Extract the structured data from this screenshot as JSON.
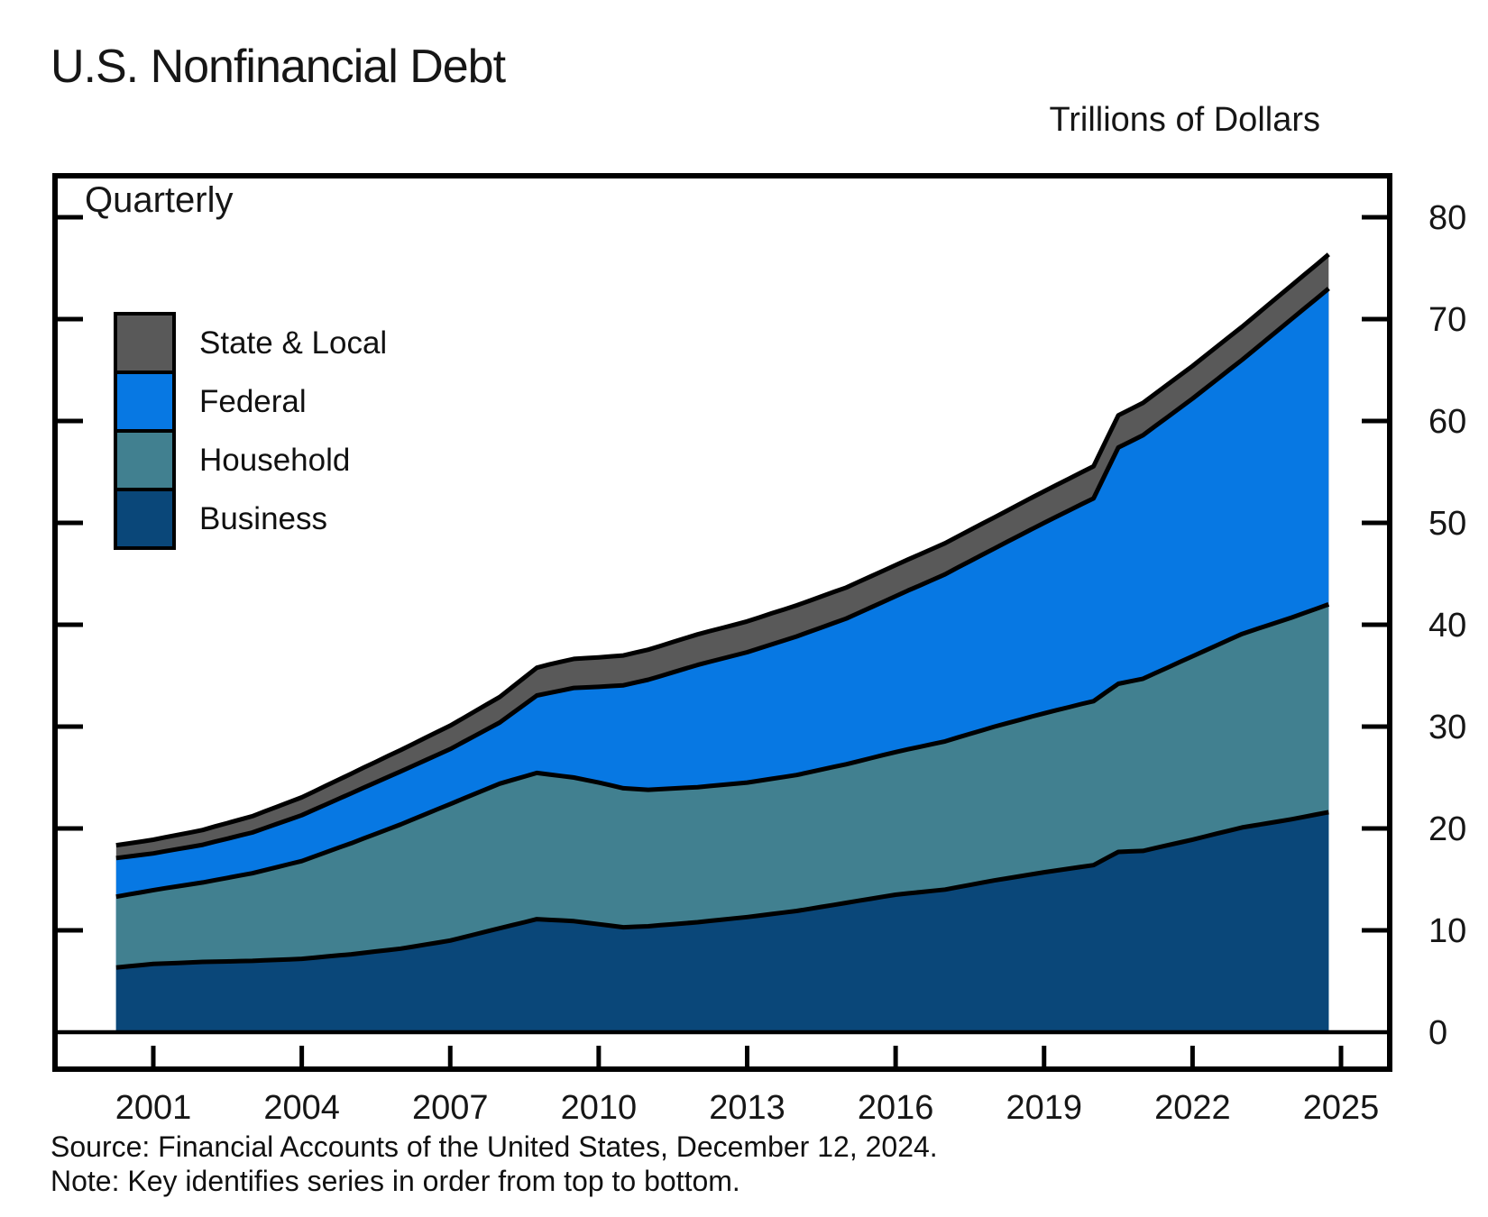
{
  "title": "U.S. Nonfinancial Debt",
  "right_axis_title": "Trillions of Dollars",
  "panel_label": "Quarterly",
  "source_line": "Source: Financial Accounts of the United States, December 12, 2024.",
  "note_line": "Note: Key identifies series in order from top to bottom.",
  "colors": {
    "state_local": "#595959",
    "federal": "#0778e3",
    "household": "#418090",
    "business": "#0a4779",
    "line": "#000000"
  },
  "legend": [
    {
      "label": "State & Local",
      "color": "#595959"
    },
    {
      "label": "Federal",
      "color": "#0778e3"
    },
    {
      "label": "Household",
      "color": "#418090"
    },
    {
      "label": "Business",
      "color": "#0a4779"
    }
  ],
  "chart_data": {
    "type": "area",
    "stacked": true,
    "title": "U.S. Nonfinancial Debt",
    "units": "Trillions of Dollars",
    "frequency": "Quarterly",
    "xlabel": "",
    "ylabel": "Trillions of Dollars",
    "ylim": [
      0,
      80
    ],
    "yticks": [
      0,
      10,
      20,
      30,
      40,
      50,
      60,
      70,
      80
    ],
    "xticks": [
      2001,
      2004,
      2007,
      2010,
      2013,
      2016,
      2019,
      2022,
      2025
    ],
    "xlim": [
      1999,
      2026
    ],
    "grid": false,
    "legend_position": "upper-left",
    "legend_order_top_to_bottom": [
      "State & Local",
      "Federal",
      "Household",
      "Business"
    ],
    "x": [
      2000.25,
      2000.5,
      2000.75,
      2001,
      2001.25,
      2001.5,
      2001.75,
      2002,
      2002.25,
      2002.5,
      2002.75,
      2003,
      2003.25,
      2003.5,
      2003.75,
      2004,
      2004.25,
      2004.5,
      2004.75,
      2005,
      2005.25,
      2005.5,
      2005.75,
      2006,
      2006.25,
      2006.5,
      2006.75,
      2007,
      2007.25,
      2007.5,
      2007.75,
      2008,
      2008.25,
      2008.5,
      2008.75,
      2009,
      2009.25,
      2009.5,
      2009.75,
      2010,
      2010.25,
      2010.5,
      2010.75,
      2011,
      2011.25,
      2011.5,
      2011.75,
      2012,
      2012.25,
      2012.5,
      2012.75,
      2013,
      2013.25,
      2013.5,
      2013.75,
      2014,
      2014.25,
      2014.5,
      2014.75,
      2015,
      2015.25,
      2015.5,
      2015.75,
      2016,
      2016.25,
      2016.5,
      2016.75,
      2017,
      2017.25,
      2017.5,
      2017.75,
      2018,
      2018.25,
      2018.5,
      2018.75,
      2019,
      2019.25,
      2019.5,
      2019.75,
      2020,
      2020.25,
      2020.5,
      2020.75,
      2021,
      2021.25,
      2021.5,
      2021.75,
      2022,
      2022.25,
      2022.5,
      2022.75,
      2023,
      2023.25,
      2023.5,
      2023.75,
      2024,
      2024.25,
      2024.5,
      2024.75
    ],
    "series": [
      {
        "name": "Business",
        "color": "#0a4779",
        "values": [
          6.35,
          6.47,
          6.58,
          6.7,
          6.75,
          6.8,
          6.85,
          6.9,
          6.93,
          6.95,
          6.98,
          7.0,
          7.05,
          7.1,
          7.15,
          7.2,
          7.31,
          7.43,
          7.54,
          7.65,
          7.79,
          7.93,
          8.06,
          8.2,
          8.4,
          8.6,
          8.8,
          9.0,
          9.3,
          9.6,
          9.9,
          10.2,
          10.5,
          10.8,
          11.1,
          11.03,
          10.97,
          10.9,
          10.75,
          10.6,
          10.45,
          10.3,
          10.35,
          10.4,
          10.5,
          10.6,
          10.7,
          10.8,
          10.93,
          11.05,
          11.18,
          11.3,
          11.45,
          11.6,
          11.75,
          11.9,
          12.1,
          12.3,
          12.5,
          12.7,
          12.9,
          13.1,
          13.3,
          13.5,
          13.63,
          13.75,
          13.88,
          14.0,
          14.23,
          14.45,
          14.68,
          14.9,
          15.1,
          15.3,
          15.5,
          15.7,
          15.88,
          16.05,
          16.23,
          16.4,
          17.05,
          17.7,
          17.75,
          17.8,
          18.08,
          18.35,
          18.63,
          18.9,
          19.2,
          19.5,
          19.8,
          20.1,
          20.3,
          20.5,
          20.7,
          20.9,
          21.13,
          21.37,
          21.6
        ]
      },
      {
        "name": "Household",
        "color": "#418090",
        "values": [
          6.95,
          7.05,
          7.15,
          7.25,
          7.39,
          7.53,
          7.66,
          7.8,
          8.0,
          8.2,
          8.4,
          8.6,
          8.85,
          9.1,
          9.35,
          9.6,
          9.93,
          10.25,
          10.58,
          10.9,
          11.23,
          11.55,
          11.88,
          12.2,
          12.5,
          12.8,
          13.1,
          13.4,
          13.6,
          13.8,
          14.0,
          14.2,
          14.25,
          14.3,
          14.35,
          14.27,
          14.18,
          14.1,
          14.0,
          13.9,
          13.78,
          13.65,
          13.53,
          13.4,
          13.36,
          13.33,
          13.29,
          13.25,
          13.24,
          13.23,
          13.21,
          13.2,
          13.24,
          13.28,
          13.31,
          13.35,
          13.41,
          13.48,
          13.54,
          13.6,
          13.7,
          13.8,
          13.9,
          14.0,
          14.14,
          14.28,
          14.41,
          14.55,
          14.69,
          14.83,
          14.96,
          15.1,
          15.23,
          15.35,
          15.48,
          15.6,
          15.73,
          15.85,
          15.98,
          16.1,
          16.3,
          16.5,
          16.7,
          16.9,
          17.18,
          17.45,
          17.73,
          18.0,
          18.25,
          18.5,
          18.75,
          19.0,
          19.2,
          19.4,
          19.6,
          19.8,
          20.0,
          20.2,
          20.4
        ]
      },
      {
        "name": "Federal",
        "color": "#0778e3",
        "values": [
          3.8,
          3.73,
          3.67,
          3.6,
          3.63,
          3.65,
          3.68,
          3.7,
          3.78,
          3.85,
          3.93,
          4.0,
          4.13,
          4.25,
          4.38,
          4.5,
          4.6,
          4.7,
          4.8,
          4.9,
          4.98,
          5.05,
          5.13,
          5.2,
          5.25,
          5.3,
          5.35,
          5.4,
          5.55,
          5.7,
          5.85,
          6.0,
          6.53,
          7.07,
          7.6,
          8.0,
          8.4,
          8.8,
          9.1,
          9.4,
          9.75,
          10.1,
          10.45,
          10.8,
          11.1,
          11.4,
          11.7,
          12.0,
          12.2,
          12.4,
          12.6,
          12.8,
          13.0,
          13.2,
          13.4,
          13.6,
          13.78,
          13.95,
          14.13,
          14.3,
          14.55,
          14.8,
          15.05,
          15.3,
          15.58,
          15.85,
          16.13,
          16.4,
          16.68,
          16.95,
          17.23,
          17.5,
          17.8,
          18.1,
          18.4,
          18.7,
          19.0,
          19.3,
          19.6,
          19.9,
          21.55,
          23.2,
          23.55,
          23.9,
          24.25,
          24.6,
          24.95,
          25.3,
          25.7,
          26.1,
          26.5,
          26.9,
          27.5,
          28.1,
          28.7,
          29.3,
          29.87,
          30.43,
          31.0
        ]
      },
      {
        "name": "State & Local",
        "color": "#595959",
        "values": [
          1.25,
          1.28,
          1.31,
          1.34,
          1.37,
          1.39,
          1.42,
          1.45,
          1.49,
          1.53,
          1.56,
          1.6,
          1.64,
          1.68,
          1.71,
          1.75,
          1.79,
          1.84,
          1.88,
          1.93,
          1.97,
          2.01,
          2.06,
          2.1,
          2.15,
          2.2,
          2.25,
          2.3,
          2.35,
          2.4,
          2.45,
          2.5,
          2.58,
          2.65,
          2.73,
          2.8,
          2.83,
          2.85,
          2.88,
          2.9,
          2.91,
          2.93,
          2.94,
          2.95,
          2.96,
          2.98,
          2.99,
          3.0,
          3.01,
          3.01,
          3.02,
          3.03,
          3.03,
          3.04,
          3.04,
          3.05,
          3.05,
          3.05,
          3.05,
          3.05,
          3.05,
          3.05,
          3.05,
          3.05,
          3.05,
          3.05,
          3.05,
          3.05,
          3.05,
          3.05,
          3.05,
          3.05,
          3.06,
          3.08,
          3.09,
          3.1,
          3.11,
          3.13,
          3.14,
          3.15,
          3.16,
          3.16,
          3.17,
          3.18,
          3.18,
          3.19,
          3.19,
          3.2,
          3.21,
          3.23,
          3.24,
          3.25,
          3.26,
          3.28,
          3.29,
          3.3,
          3.32,
          3.33,
          3.35
        ]
      }
    ]
  }
}
